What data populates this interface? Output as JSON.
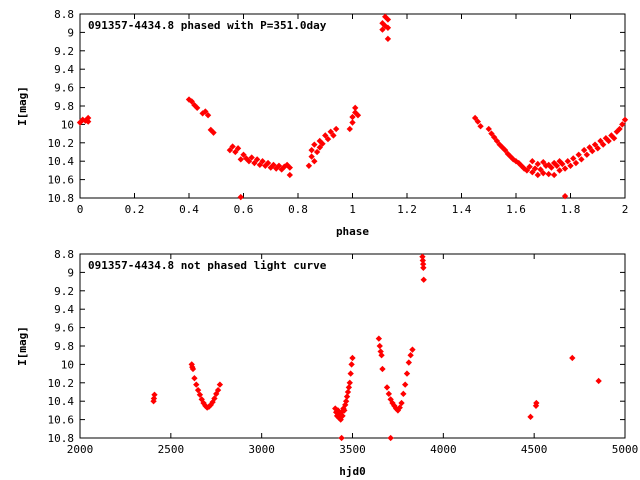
{
  "colors": {
    "points": "#ff0000",
    "axes": "#000000",
    "background": "#ffffff"
  },
  "chart_data": [
    {
      "type": "scatter",
      "title": "091357-4434.8 phased with P=351.0day",
      "xlabel": "phase",
      "ylabel": "I[mag]",
      "xlim": [
        0,
        2
      ],
      "ylim": [
        8.8,
        10.8
      ],
      "y_inverted": true,
      "grid": false,
      "legend": "none",
      "xticks": [
        0,
        0.2,
        0.4,
        0.6,
        0.8,
        1,
        1.2,
        1.4,
        1.6,
        1.8,
        2
      ],
      "xtick_labels": [
        "0",
        "0.2",
        "0.4",
        "0.6",
        "0.8",
        "1",
        "1.2",
        "1.4",
        "1.6",
        "1.8",
        "2"
      ],
      "yticks": [
        8.8,
        9,
        9.2,
        9.4,
        9.6,
        9.8,
        10,
        10.2,
        10.4,
        10.6,
        10.8
      ],
      "ytick_labels": [
        "8.8",
        "9",
        "9.2",
        "9.4",
        "9.6",
        "9.8",
        "10",
        "10.2",
        "10.4",
        "10.6",
        "10.8"
      ],
      "points": [
        [
          0.0,
          9.98
        ],
        [
          0.01,
          9.95
        ],
        [
          0.02,
          9.96
        ],
        [
          0.03,
          9.93
        ],
        [
          0.03,
          9.97
        ],
        [
          0.4,
          9.73
        ],
        [
          0.41,
          9.75
        ],
        [
          0.42,
          9.79
        ],
        [
          0.43,
          9.82
        ],
        [
          0.45,
          9.88
        ],
        [
          0.46,
          9.86
        ],
        [
          0.47,
          9.9
        ],
        [
          0.48,
          10.06
        ],
        [
          0.49,
          10.09
        ],
        [
          0.55,
          10.28
        ],
        [
          0.56,
          10.24
        ],
        [
          0.57,
          10.3
        ],
        [
          0.58,
          10.26
        ],
        [
          0.59,
          10.38
        ],
        [
          0.6,
          10.33
        ],
        [
          0.61,
          10.37
        ],
        [
          0.62,
          10.4
        ],
        [
          0.63,
          10.36
        ],
        [
          0.64,
          10.42
        ],
        [
          0.65,
          10.38
        ],
        [
          0.66,
          10.44
        ],
        [
          0.67,
          10.4
        ],
        [
          0.68,
          10.45
        ],
        [
          0.69,
          10.42
        ],
        [
          0.7,
          10.47
        ],
        [
          0.71,
          10.44
        ],
        [
          0.72,
          10.48
        ],
        [
          0.73,
          10.45
        ],
        [
          0.74,
          10.49
        ],
        [
          0.75,
          10.46
        ],
        [
          0.76,
          10.44
        ],
        [
          0.77,
          10.47
        ],
        [
          0.77,
          10.55
        ],
        [
          0.59,
          10.79
        ],
        [
          0.84,
          10.45
        ],
        [
          0.85,
          10.35
        ],
        [
          0.85,
          10.28
        ],
        [
          0.86,
          10.4
        ],
        [
          0.86,
          10.22
        ],
        [
          0.87,
          10.3
        ],
        [
          0.88,
          10.25
        ],
        [
          0.88,
          10.18
        ],
        [
          0.89,
          10.21
        ],
        [
          0.9,
          10.12
        ],
        [
          0.91,
          10.16
        ],
        [
          0.92,
          10.08
        ],
        [
          0.93,
          10.12
        ],
        [
          0.94,
          10.05
        ],
        [
          0.99,
          10.05
        ],
        [
          1.0,
          9.98
        ],
        [
          1.0,
          9.92
        ],
        [
          1.01,
          9.87
        ],
        [
          1.01,
          9.82
        ],
        [
          1.02,
          9.9
        ],
        [
          1.11,
          8.9
        ],
        [
          1.11,
          8.97
        ],
        [
          1.12,
          8.83
        ],
        [
          1.12,
          8.93
        ],
        [
          1.13,
          8.86
        ],
        [
          1.13,
          8.95
        ],
        [
          1.13,
          9.07
        ],
        [
          1.45,
          9.93
        ],
        [
          1.46,
          9.97
        ],
        [
          1.47,
          10.02
        ],
        [
          1.5,
          10.05
        ],
        [
          1.51,
          10.1
        ],
        [
          1.52,
          10.14
        ],
        [
          1.53,
          10.18
        ],
        [
          1.54,
          10.22
        ],
        [
          1.55,
          10.25
        ],
        [
          1.56,
          10.28
        ],
        [
          1.57,
          10.32
        ],
        [
          1.58,
          10.35
        ],
        [
          1.59,
          10.38
        ],
        [
          1.6,
          10.4
        ],
        [
          1.61,
          10.42
        ],
        [
          1.62,
          10.45
        ],
        [
          1.63,
          10.48
        ],
        [
          1.64,
          10.5
        ],
        [
          1.65,
          10.46
        ],
        [
          1.66,
          10.52
        ],
        [
          1.67,
          10.48
        ],
        [
          1.68,
          10.55
        ],
        [
          1.69,
          10.49
        ],
        [
          1.7,
          10.53
        ],
        [
          1.71,
          10.45
        ],
        [
          1.72,
          10.54
        ],
        [
          1.73,
          10.47
        ],
        [
          1.74,
          10.55
        ],
        [
          1.75,
          10.45
        ],
        [
          1.76,
          10.5
        ],
        [
          1.77,
          10.43
        ],
        [
          1.78,
          10.48
        ],
        [
          1.79,
          10.4
        ],
        [
          1.8,
          10.45
        ],
        [
          1.81,
          10.37
        ],
        [
          1.82,
          10.42
        ],
        [
          1.83,
          10.33
        ],
        [
          1.84,
          10.38
        ],
        [
          1.85,
          10.28
        ],
        [
          1.86,
          10.33
        ],
        [
          1.87,
          10.25
        ],
        [
          1.88,
          10.29
        ],
        [
          1.89,
          10.22
        ],
        [
          1.9,
          10.26
        ],
        [
          1.91,
          10.18
        ],
        [
          1.92,
          10.22
        ],
        [
          1.93,
          10.15
        ],
        [
          1.94,
          10.18
        ],
        [
          1.95,
          10.12
        ],
        [
          1.96,
          10.15
        ],
        [
          1.97,
          10.08
        ],
        [
          1.98,
          10.05
        ],
        [
          1.99,
          10.0
        ],
        [
          2.0,
          9.95
        ],
        [
          1.66,
          10.4
        ],
        [
          1.68,
          10.43
        ],
        [
          1.7,
          10.41
        ],
        [
          1.72,
          10.44
        ],
        [
          1.74,
          10.42
        ],
        [
          1.76,
          10.4
        ],
        [
          1.78,
          10.78
        ]
      ]
    },
    {
      "type": "scatter",
      "title": "091357-4434.8 not phased light curve",
      "xlabel": "hjd0",
      "ylabel": "I[mag]",
      "xlim": [
        2000,
        5000
      ],
      "ylim": [
        8.8,
        10.8
      ],
      "y_inverted": true,
      "grid": false,
      "legend": "none",
      "xticks": [
        2000,
        2500,
        3000,
        3500,
        4000,
        4500,
        5000
      ],
      "xtick_labels": [
        "2000",
        "2500",
        "3000",
        "3500",
        "4000",
        "4500",
        "5000"
      ],
      "yticks": [
        8.8,
        9,
        9.2,
        9.4,
        9.6,
        9.8,
        10,
        10.2,
        10.4,
        10.6,
        10.8
      ],
      "ytick_labels": [
        "8.8",
        "9",
        "9.2",
        "9.4",
        "9.6",
        "9.8",
        "10",
        "10.2",
        "10.4",
        "10.6",
        "10.8"
      ],
      "points": [
        [
          2405,
          10.4
        ],
        [
          2407,
          10.37
        ],
        [
          2410,
          10.33
        ],
        [
          2615,
          10.0
        ],
        [
          2618,
          10.03
        ],
        [
          2622,
          10.05
        ],
        [
          2630,
          10.15
        ],
        [
          2640,
          10.22
        ],
        [
          2650,
          10.28
        ],
        [
          2660,
          10.33
        ],
        [
          2670,
          10.38
        ],
        [
          2680,
          10.42
        ],
        [
          2690,
          10.45
        ],
        [
          2700,
          10.47
        ],
        [
          2710,
          10.46
        ],
        [
          2720,
          10.44
        ],
        [
          2730,
          10.41
        ],
        [
          2740,
          10.37
        ],
        [
          2750,
          10.32
        ],
        [
          2760,
          10.28
        ],
        [
          2770,
          10.22
        ],
        [
          3405,
          10.48
        ],
        [
          3410,
          10.52
        ],
        [
          3415,
          10.56
        ],
        [
          3420,
          10.5
        ],
        [
          3425,
          10.58
        ],
        [
          3430,
          10.54
        ],
        [
          3435,
          10.6
        ],
        [
          3440,
          10.52
        ],
        [
          3445,
          10.56
        ],
        [
          3450,
          10.48
        ],
        [
          3455,
          10.5
        ],
        [
          3460,
          10.44
        ],
        [
          3465,
          10.4
        ],
        [
          3470,
          10.35
        ],
        [
          3475,
          10.3
        ],
        [
          3480,
          10.25
        ],
        [
          3485,
          10.2
        ],
        [
          3490,
          10.1
        ],
        [
          3495,
          10.0
        ],
        [
          3500,
          9.93
        ],
        [
          3440,
          10.8
        ],
        [
          3645,
          9.72
        ],
        [
          3650,
          9.8
        ],
        [
          3655,
          9.86
        ],
        [
          3660,
          9.9
        ],
        [
          3665,
          10.05
        ],
        [
          3690,
          10.25
        ],
        [
          3700,
          10.32
        ],
        [
          3710,
          10.38
        ],
        [
          3720,
          10.42
        ],
        [
          3730,
          10.45
        ],
        [
          3740,
          10.48
        ],
        [
          3750,
          10.5
        ],
        [
          3760,
          10.47
        ],
        [
          3770,
          10.42
        ],
        [
          3780,
          10.32
        ],
        [
          3790,
          10.22
        ],
        [
          3800,
          10.1
        ],
        [
          3810,
          9.98
        ],
        [
          3820,
          9.9
        ],
        [
          3830,
          9.84
        ],
        [
          3710,
          10.8
        ],
        [
          3885,
          8.83
        ],
        [
          3887,
          8.87
        ],
        [
          3889,
          8.91
        ],
        [
          3890,
          8.95
        ],
        [
          3892,
          9.08
        ],
        [
          4480,
          10.57
        ],
        [
          4510,
          10.45
        ],
        [
          4512,
          10.42
        ],
        [
          4710,
          9.93
        ],
        [
          4855,
          10.18
        ]
      ]
    }
  ]
}
